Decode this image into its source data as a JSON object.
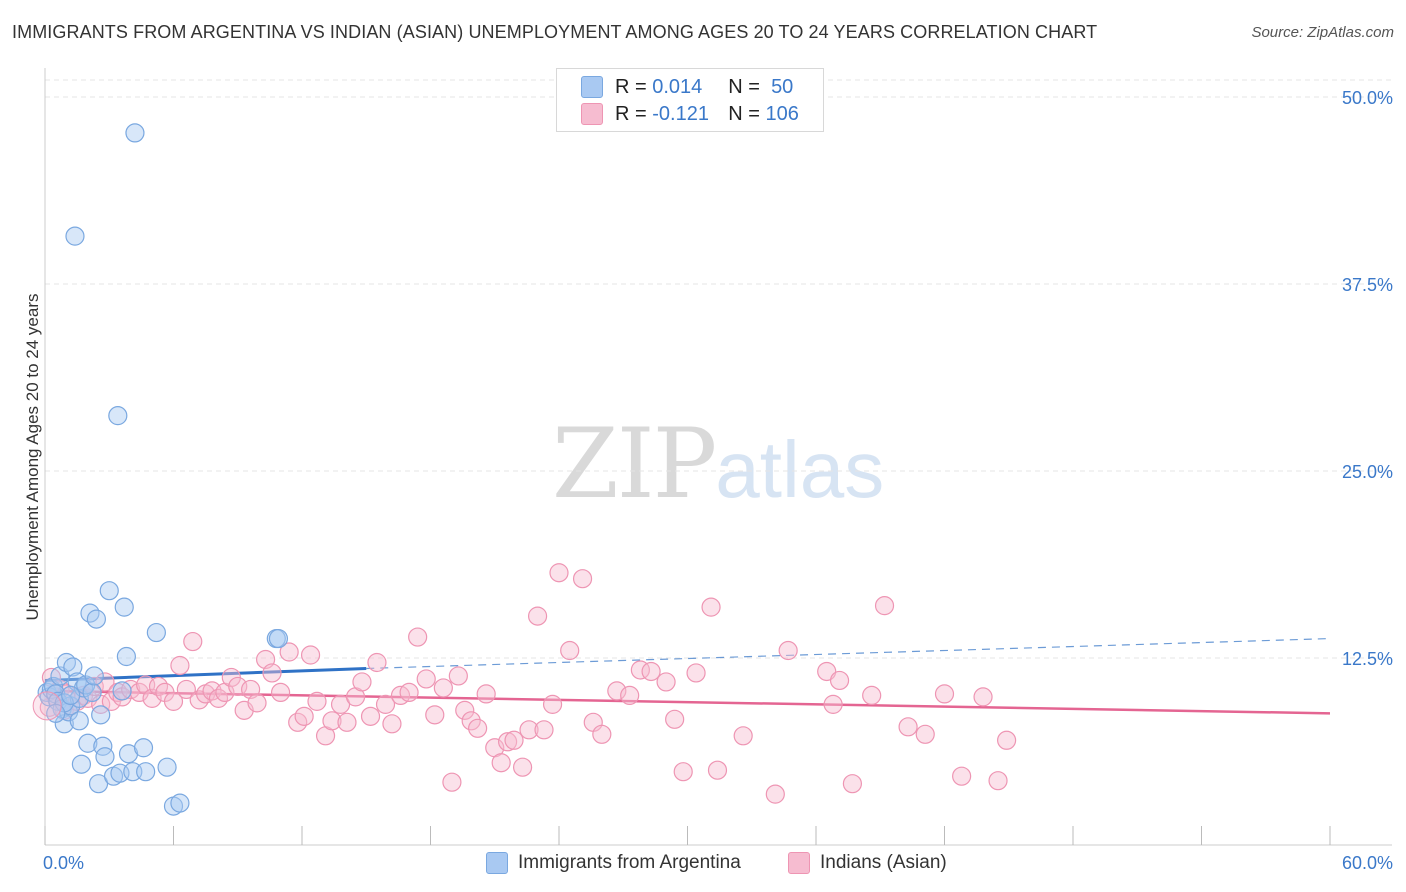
{
  "header": {
    "title": "IMMIGRANTS FROM ARGENTINA VS INDIAN (ASIAN) UNEMPLOYMENT AMONG AGES 20 TO 24 YEARS CORRELATION CHART",
    "source": "Source: ZipAtlas.com"
  },
  "watermark": {
    "zip": "ZIP",
    "atlas": "atlas"
  },
  "legend": {
    "r_label": "R =",
    "n_label": "N =",
    "rows": [
      {
        "r": "0.014",
        "n": "50"
      },
      {
        "r": "-0.121",
        "n": "106"
      }
    ]
  },
  "colors": {
    "blue_fill": "#a9c9f2",
    "blue_stroke": "#7aa8e0",
    "blue_line": "#2f72c6",
    "pink_fill": "#f6bcd0",
    "pink_stroke": "#ee95b3",
    "pink_line": "#e46592",
    "axis_text": "#3a78c9",
    "grid": "#e4e4e4"
  },
  "chart_data": {
    "type": "scatter",
    "title": "IMMIGRANTS FROM ARGENTINA VS INDIAN (ASIAN) UNEMPLOYMENT AMONG AGES 20 TO 24 YEARS CORRELATION CHART",
    "xlabel": "",
    "ylabel": "Unemployment Among Ages 20 to 24 years",
    "xlim": [
      0,
      60
    ],
    "ylim": [
      0,
      50
    ],
    "x_tick_labels": [
      "0.0%",
      "60.0%"
    ],
    "y_ticks": [
      12.5,
      25.0,
      37.5,
      50.0
    ],
    "y_tick_labels": [
      "12.5%",
      "25.0%",
      "37.5%",
      "50.0%"
    ],
    "grid": true,
    "series": [
      {
        "name": "Immigrants from Argentina",
        "color": "blue",
        "trend": {
          "x0": 0,
          "y0": 11.0,
          "x1": 15,
          "y1": 11.8,
          "dash_x1": 60,
          "dash_y1": 13.8
        },
        "points": [
          [
            0.1,
            10.2
          ],
          [
            0.2,
            9.9
          ],
          [
            0.3,
            10.4
          ],
          [
            0.4,
            10.6
          ],
          [
            0.5,
            10.1
          ],
          [
            0.6,
            9.6
          ],
          [
            0.7,
            11.3
          ],
          [
            0.8,
            9.1
          ],
          [
            0.9,
            8.1
          ],
          [
            1.0,
            12.2
          ],
          [
            1.1,
            8.9
          ],
          [
            1.2,
            9.3
          ],
          [
            1.3,
            11.9
          ],
          [
            1.5,
            10.9
          ],
          [
            1.6,
            9.8
          ],
          [
            1.7,
            5.4
          ],
          [
            1.8,
            10.5
          ],
          [
            1.9,
            10.7
          ],
          [
            2.0,
            6.8
          ],
          [
            2.1,
            15.5
          ],
          [
            2.2,
            10.2
          ],
          [
            2.4,
            15.1
          ],
          [
            2.5,
            4.1
          ],
          [
            2.6,
            8.7
          ],
          [
            2.7,
            6.6
          ],
          [
            2.8,
            5.9
          ],
          [
            3.0,
            17.0
          ],
          [
            3.2,
            4.6
          ],
          [
            3.4,
            28.7
          ],
          [
            3.5,
            4.8
          ],
          [
            3.7,
            15.9
          ],
          [
            3.8,
            12.6
          ],
          [
            3.9,
            6.1
          ],
          [
            4.1,
            4.9
          ],
          [
            4.2,
            47.6
          ],
          [
            4.6,
            6.5
          ],
          [
            4.7,
            4.9
          ],
          [
            5.2,
            14.2
          ],
          [
            5.7,
            5.2
          ],
          [
            6.0,
            2.6
          ],
          [
            6.3,
            2.8
          ],
          [
            10.8,
            13.8
          ],
          [
            10.9,
            13.8
          ],
          [
            1.4,
            40.7
          ],
          [
            0.9,
            9.5
          ],
          [
            2.3,
            11.3
          ],
          [
            3.6,
            10.3
          ],
          [
            1.2,
            10.0
          ],
          [
            0.5,
            8.8
          ],
          [
            1.6,
            8.3
          ]
        ]
      },
      {
        "name": "Indians (Asian)",
        "color": "pink",
        "trend": {
          "x0": 0,
          "y0": 10.3,
          "x1": 60,
          "y1": 8.8
        },
        "points": [
          [
            0.2,
            9.2
          ],
          [
            0.3,
            11.2
          ],
          [
            0.5,
            9.9
          ],
          [
            0.7,
            10.4
          ],
          [
            0.9,
            9.0
          ],
          [
            1.0,
            10.1
          ],
          [
            1.2,
            9.3
          ],
          [
            1.5,
            9.6
          ],
          [
            1.8,
            10.0
          ],
          [
            2.0,
            9.8
          ],
          [
            2.3,
            10.6
          ],
          [
            2.6,
            9.4
          ],
          [
            2.8,
            10.9
          ],
          [
            3.1,
            9.6
          ],
          [
            3.4,
            10.2
          ],
          [
            3.6,
            9.9
          ],
          [
            4.0,
            10.4
          ],
          [
            4.4,
            10.2
          ],
          [
            4.7,
            10.7
          ],
          [
            5.0,
            9.8
          ],
          [
            5.3,
            10.6
          ],
          [
            5.6,
            10.2
          ],
          [
            6.0,
            9.6
          ],
          [
            6.3,
            12.0
          ],
          [
            6.6,
            10.4
          ],
          [
            6.9,
            13.6
          ],
          [
            7.2,
            9.7
          ],
          [
            7.5,
            10.1
          ],
          [
            7.8,
            10.3
          ],
          [
            8.1,
            9.8
          ],
          [
            8.4,
            10.2
          ],
          [
            8.7,
            11.2
          ],
          [
            9.0,
            10.6
          ],
          [
            9.3,
            9.0
          ],
          [
            9.6,
            10.4
          ],
          [
            9.9,
            9.5
          ],
          [
            10.3,
            12.4
          ],
          [
            10.6,
            11.5
          ],
          [
            11.0,
            10.2
          ],
          [
            11.4,
            12.9
          ],
          [
            11.8,
            8.2
          ],
          [
            12.1,
            8.6
          ],
          [
            12.4,
            12.7
          ],
          [
            12.7,
            9.6
          ],
          [
            13.1,
            7.3
          ],
          [
            13.4,
            8.3
          ],
          [
            13.8,
            9.4
          ],
          [
            14.1,
            8.2
          ],
          [
            14.5,
            9.9
          ],
          [
            14.8,
            10.9
          ],
          [
            15.2,
            8.6
          ],
          [
            15.5,
            12.2
          ],
          [
            15.9,
            9.4
          ],
          [
            16.2,
            8.1
          ],
          [
            16.6,
            10.0
          ],
          [
            17.0,
            10.2
          ],
          [
            17.4,
            13.9
          ],
          [
            17.8,
            11.1
          ],
          [
            18.2,
            8.7
          ],
          [
            18.6,
            10.5
          ],
          [
            19.0,
            4.2
          ],
          [
            19.3,
            11.3
          ],
          [
            19.6,
            9.0
          ],
          [
            19.9,
            8.3
          ],
          [
            20.2,
            7.8
          ],
          [
            20.6,
            10.1
          ],
          [
            21.0,
            6.5
          ],
          [
            21.3,
            5.5
          ],
          [
            21.6,
            6.9
          ],
          [
            21.9,
            7.0
          ],
          [
            22.3,
            5.2
          ],
          [
            22.6,
            7.7
          ],
          [
            23.0,
            15.3
          ],
          [
            23.3,
            7.7
          ],
          [
            23.7,
            9.4
          ],
          [
            24.0,
            18.2
          ],
          [
            24.5,
            13.0
          ],
          [
            25.1,
            17.8
          ],
          [
            25.6,
            8.2
          ],
          [
            26.0,
            7.4
          ],
          [
            26.7,
            10.3
          ],
          [
            27.3,
            10.0
          ],
          [
            27.8,
            11.7
          ],
          [
            28.3,
            11.6
          ],
          [
            29.0,
            10.9
          ],
          [
            29.4,
            8.4
          ],
          [
            29.8,
            4.9
          ],
          [
            30.4,
            11.5
          ],
          [
            31.1,
            15.9
          ],
          [
            31.4,
            5.0
          ],
          [
            32.6,
            7.3
          ],
          [
            34.1,
            3.4
          ],
          [
            34.7,
            13.0
          ],
          [
            36.5,
            11.6
          ],
          [
            36.8,
            9.4
          ],
          [
            37.1,
            11.0
          ],
          [
            37.7,
            4.1
          ],
          [
            38.6,
            10.0
          ],
          [
            39.2,
            16.0
          ],
          [
            40.3,
            7.9
          ],
          [
            41.1,
            7.4
          ],
          [
            42.0,
            10.1
          ],
          [
            42.8,
            4.6
          ],
          [
            43.8,
            9.9
          ],
          [
            44.5,
            4.3
          ],
          [
            44.9,
            7.0
          ]
        ]
      }
    ]
  },
  "bottom_legend": {
    "items": [
      "Immigrants from Argentina",
      "Indians (Asian)"
    ]
  }
}
